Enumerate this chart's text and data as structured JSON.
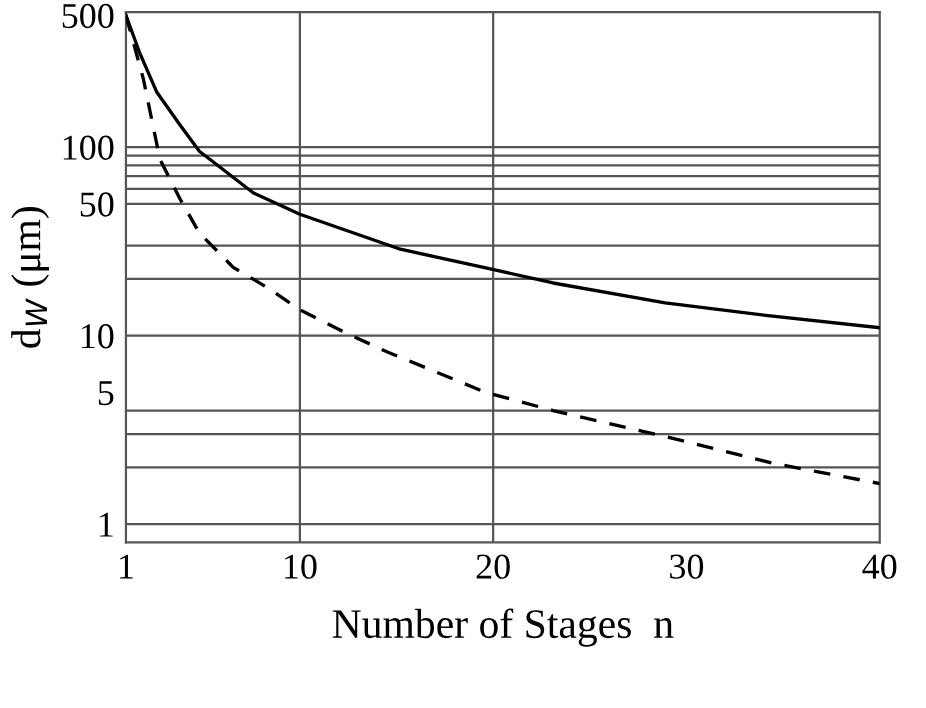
{
  "chart_data": {
    "type": "line",
    "xlabel": "Number of Stages  n",
    "ylabel": "d$_{W}$ (μm)",
    "log": "y",
    "grid": false,
    "xlim": [
      1,
      40
    ],
    "xticks": [
      1,
      10,
      20,
      30,
      40
    ],
    "ylim": [
      0.8,
      520
    ],
    "yticks": [
      1,
      5,
      10,
      50,
      100,
      500
    ],
    "ref_lines": [
      {
        "axis": "x",
        "value": 10
      },
      {
        "axis": "x",
        "value": 20
      },
      {
        "axis": "y",
        "value": 1
      },
      {
        "axis": "y",
        "value": 2
      },
      {
        "axis": "y",
        "value": 3
      },
      {
        "axis": "y",
        "value": 4
      },
      {
        "axis": "y",
        "value": 10
      },
      {
        "axis": "y",
        "value": 20
      },
      {
        "axis": "y",
        "value": 30
      },
      {
        "axis": "y",
        "value": 50
      },
      {
        "axis": "y",
        "value": 60
      },
      {
        "axis": "y",
        "value": 70
      },
      {
        "axis": "y",
        "value": 80
      },
      {
        "axis": "y",
        "value": 90
      },
      {
        "axis": "y",
        "value": 100
      }
    ],
    "series": [
      {
        "color": "#000000",
        "line_style": "solid",
        "x": [
          1,
          1.7,
          2.6,
          3.8,
          4.8,
          7.6,
          10,
          15.2,
          19.5,
          23.1,
          28.9,
          34.1,
          40
        ],
        "values": [
          500,
          318,
          195,
          131,
          95,
          57,
          44,
          28.7,
          23,
          19,
          14.9,
          12.8,
          11
        ]
      },
      {
        "color": "#000000",
        "line_style": "dashed",
        "x": [
          1,
          1.9,
          2.76,
          3.8,
          4.8,
          6.55,
          8.3,
          10,
          12.4,
          14.5,
          19.6,
          23.1,
          29,
          34.5,
          40
        ],
        "values": [
          500,
          230,
          86,
          53,
          35,
          23,
          18,
          13.7,
          10.3,
          8.2,
          5,
          4,
          2.9,
          2.1,
          1.64
        ]
      }
    ]
  }
}
